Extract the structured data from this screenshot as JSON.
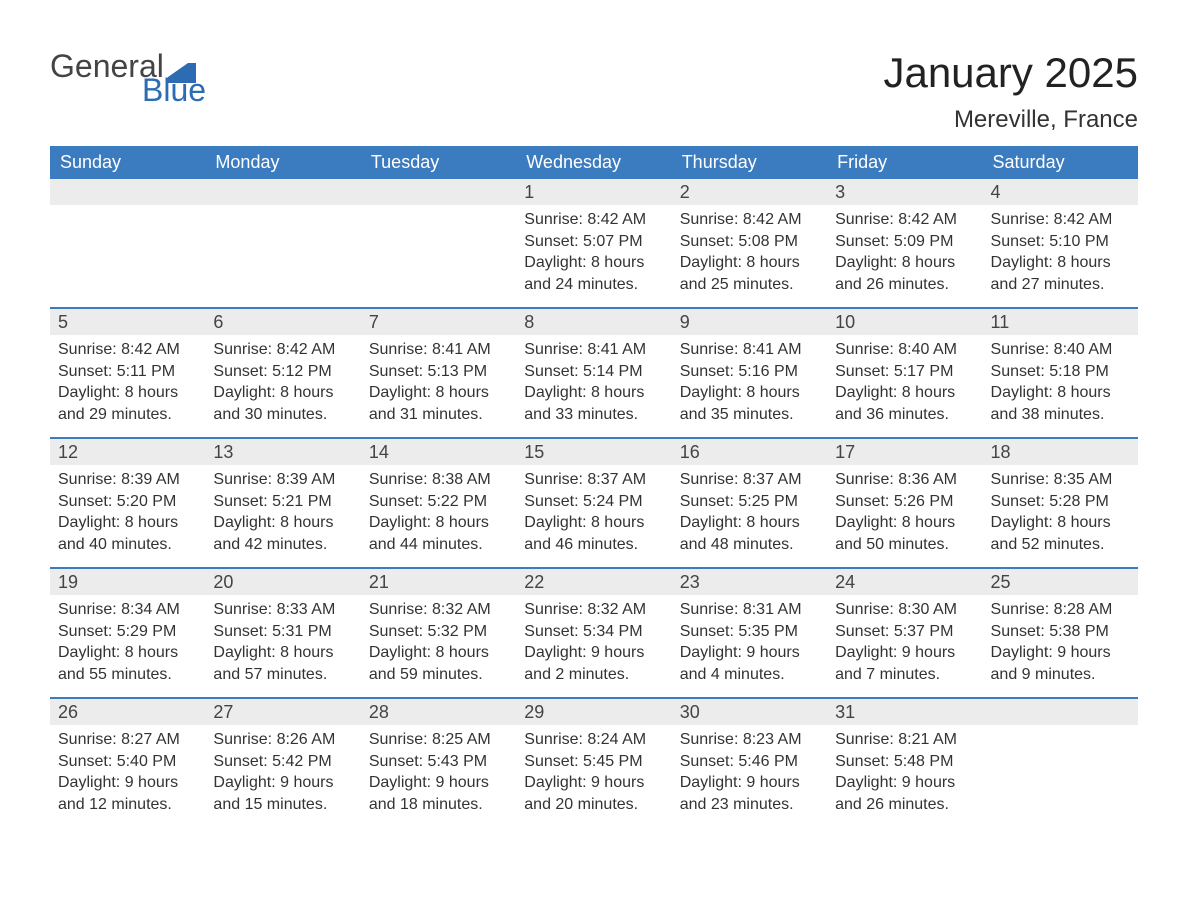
{
  "logo": {
    "text_top": "General",
    "text_bottom": "Blue",
    "gray": "#444444",
    "blue": "#2d6bb3"
  },
  "title": "January 2025",
  "location": "Mereville, France",
  "colors": {
    "header_bg": "#3b7bbf",
    "header_text": "#ffffff",
    "daynum_bg": "#ececec",
    "daynum_text": "#444444",
    "week_border": "#3b7bbf",
    "body_text": "#333333",
    "page_bg": "#ffffff"
  },
  "fonts": {
    "title_size": 42,
    "location_size": 24,
    "weekday_size": 18,
    "daynum_size": 18,
    "body_size": 16
  },
  "weekdays": [
    "Sunday",
    "Monday",
    "Tuesday",
    "Wednesday",
    "Thursday",
    "Friday",
    "Saturday"
  ],
  "weeks": [
    [
      {
        "empty": true
      },
      {
        "empty": true
      },
      {
        "empty": true
      },
      {
        "day": "1",
        "sunrise": "Sunrise: 8:42 AM",
        "sunset": "Sunset: 5:07 PM",
        "daylight1": "Daylight: 8 hours",
        "daylight2": "and 24 minutes."
      },
      {
        "day": "2",
        "sunrise": "Sunrise: 8:42 AM",
        "sunset": "Sunset: 5:08 PM",
        "daylight1": "Daylight: 8 hours",
        "daylight2": "and 25 minutes."
      },
      {
        "day": "3",
        "sunrise": "Sunrise: 8:42 AM",
        "sunset": "Sunset: 5:09 PM",
        "daylight1": "Daylight: 8 hours",
        "daylight2": "and 26 minutes."
      },
      {
        "day": "4",
        "sunrise": "Sunrise: 8:42 AM",
        "sunset": "Sunset: 5:10 PM",
        "daylight1": "Daylight: 8 hours",
        "daylight2": "and 27 minutes."
      }
    ],
    [
      {
        "day": "5",
        "sunrise": "Sunrise: 8:42 AM",
        "sunset": "Sunset: 5:11 PM",
        "daylight1": "Daylight: 8 hours",
        "daylight2": "and 29 minutes."
      },
      {
        "day": "6",
        "sunrise": "Sunrise: 8:42 AM",
        "sunset": "Sunset: 5:12 PM",
        "daylight1": "Daylight: 8 hours",
        "daylight2": "and 30 minutes."
      },
      {
        "day": "7",
        "sunrise": "Sunrise: 8:41 AM",
        "sunset": "Sunset: 5:13 PM",
        "daylight1": "Daylight: 8 hours",
        "daylight2": "and 31 minutes."
      },
      {
        "day": "8",
        "sunrise": "Sunrise: 8:41 AM",
        "sunset": "Sunset: 5:14 PM",
        "daylight1": "Daylight: 8 hours",
        "daylight2": "and 33 minutes."
      },
      {
        "day": "9",
        "sunrise": "Sunrise: 8:41 AM",
        "sunset": "Sunset: 5:16 PM",
        "daylight1": "Daylight: 8 hours",
        "daylight2": "and 35 minutes."
      },
      {
        "day": "10",
        "sunrise": "Sunrise: 8:40 AM",
        "sunset": "Sunset: 5:17 PM",
        "daylight1": "Daylight: 8 hours",
        "daylight2": "and 36 minutes."
      },
      {
        "day": "11",
        "sunrise": "Sunrise: 8:40 AM",
        "sunset": "Sunset: 5:18 PM",
        "daylight1": "Daylight: 8 hours",
        "daylight2": "and 38 minutes."
      }
    ],
    [
      {
        "day": "12",
        "sunrise": "Sunrise: 8:39 AM",
        "sunset": "Sunset: 5:20 PM",
        "daylight1": "Daylight: 8 hours",
        "daylight2": "and 40 minutes."
      },
      {
        "day": "13",
        "sunrise": "Sunrise: 8:39 AM",
        "sunset": "Sunset: 5:21 PM",
        "daylight1": "Daylight: 8 hours",
        "daylight2": "and 42 minutes."
      },
      {
        "day": "14",
        "sunrise": "Sunrise: 8:38 AM",
        "sunset": "Sunset: 5:22 PM",
        "daylight1": "Daylight: 8 hours",
        "daylight2": "and 44 minutes."
      },
      {
        "day": "15",
        "sunrise": "Sunrise: 8:37 AM",
        "sunset": "Sunset: 5:24 PM",
        "daylight1": "Daylight: 8 hours",
        "daylight2": "and 46 minutes."
      },
      {
        "day": "16",
        "sunrise": "Sunrise: 8:37 AM",
        "sunset": "Sunset: 5:25 PM",
        "daylight1": "Daylight: 8 hours",
        "daylight2": "and 48 minutes."
      },
      {
        "day": "17",
        "sunrise": "Sunrise: 8:36 AM",
        "sunset": "Sunset: 5:26 PM",
        "daylight1": "Daylight: 8 hours",
        "daylight2": "and 50 minutes."
      },
      {
        "day": "18",
        "sunrise": "Sunrise: 8:35 AM",
        "sunset": "Sunset: 5:28 PM",
        "daylight1": "Daylight: 8 hours",
        "daylight2": "and 52 minutes."
      }
    ],
    [
      {
        "day": "19",
        "sunrise": "Sunrise: 8:34 AM",
        "sunset": "Sunset: 5:29 PM",
        "daylight1": "Daylight: 8 hours",
        "daylight2": "and 55 minutes."
      },
      {
        "day": "20",
        "sunrise": "Sunrise: 8:33 AM",
        "sunset": "Sunset: 5:31 PM",
        "daylight1": "Daylight: 8 hours",
        "daylight2": "and 57 minutes."
      },
      {
        "day": "21",
        "sunrise": "Sunrise: 8:32 AM",
        "sunset": "Sunset: 5:32 PM",
        "daylight1": "Daylight: 8 hours",
        "daylight2": "and 59 minutes."
      },
      {
        "day": "22",
        "sunrise": "Sunrise: 8:32 AM",
        "sunset": "Sunset: 5:34 PM",
        "daylight1": "Daylight: 9 hours",
        "daylight2": "and 2 minutes."
      },
      {
        "day": "23",
        "sunrise": "Sunrise: 8:31 AM",
        "sunset": "Sunset: 5:35 PM",
        "daylight1": "Daylight: 9 hours",
        "daylight2": "and 4 minutes."
      },
      {
        "day": "24",
        "sunrise": "Sunrise: 8:30 AM",
        "sunset": "Sunset: 5:37 PM",
        "daylight1": "Daylight: 9 hours",
        "daylight2": "and 7 minutes."
      },
      {
        "day": "25",
        "sunrise": "Sunrise: 8:28 AM",
        "sunset": "Sunset: 5:38 PM",
        "daylight1": "Daylight: 9 hours",
        "daylight2": "and 9 minutes."
      }
    ],
    [
      {
        "day": "26",
        "sunrise": "Sunrise: 8:27 AM",
        "sunset": "Sunset: 5:40 PM",
        "daylight1": "Daylight: 9 hours",
        "daylight2": "and 12 minutes."
      },
      {
        "day": "27",
        "sunrise": "Sunrise: 8:26 AM",
        "sunset": "Sunset: 5:42 PM",
        "daylight1": "Daylight: 9 hours",
        "daylight2": "and 15 minutes."
      },
      {
        "day": "28",
        "sunrise": "Sunrise: 8:25 AM",
        "sunset": "Sunset: 5:43 PM",
        "daylight1": "Daylight: 9 hours",
        "daylight2": "and 18 minutes."
      },
      {
        "day": "29",
        "sunrise": "Sunrise: 8:24 AM",
        "sunset": "Sunset: 5:45 PM",
        "daylight1": "Daylight: 9 hours",
        "daylight2": "and 20 minutes."
      },
      {
        "day": "30",
        "sunrise": "Sunrise: 8:23 AM",
        "sunset": "Sunset: 5:46 PM",
        "daylight1": "Daylight: 9 hours",
        "daylight2": "and 23 minutes."
      },
      {
        "day": "31",
        "sunrise": "Sunrise: 8:21 AM",
        "sunset": "Sunset: 5:48 PM",
        "daylight1": "Daylight: 9 hours",
        "daylight2": "and 26 minutes."
      },
      {
        "empty": true
      }
    ]
  ]
}
